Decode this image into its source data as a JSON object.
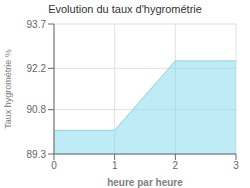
{
  "chart_data": {
    "type": "area",
    "title": "Evolution du taux d'hygrométrie",
    "xlabel": "heure par heure",
    "ylabel": "Taux hygrométrie %",
    "x": [
      0,
      1,
      2,
      3
    ],
    "values": [
      90.1,
      90.1,
      92.45,
      92.45
    ],
    "xlim": [
      0,
      3
    ],
    "ylim": [
      89.3,
      93.7
    ],
    "xticks": [
      0,
      1,
      2,
      3
    ],
    "yticks": [
      89.3,
      90.8,
      92.2,
      93.7
    ],
    "color": "#7dd8ec",
    "grid": true
  }
}
